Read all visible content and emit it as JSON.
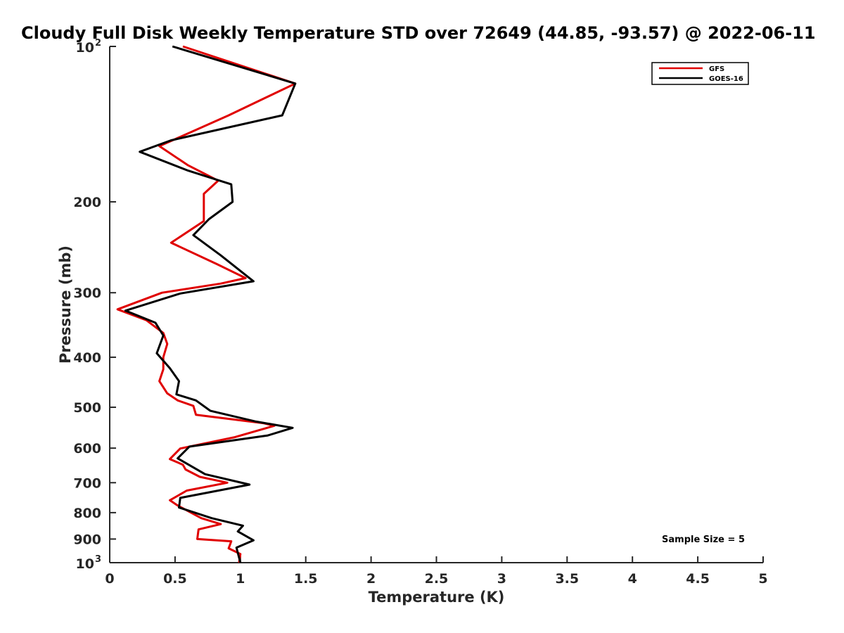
{
  "chart_data": {
    "type": "line",
    "title": "Cloudy Full Disk Weekly Temperature STD over 72649 (44.85, -93.57) @ 2022-06-11",
    "xlabel": "Temperature (K)",
    "ylabel": "Pressure (mb)",
    "xlim": [
      0,
      5
    ],
    "ylim": [
      100,
      1000
    ],
    "y_scale": "log",
    "y_reversed": true,
    "grid": false,
    "legend_position": "top-right",
    "x_ticks": [
      "0",
      "0.5",
      "1",
      "1.5",
      "2",
      "2.5",
      "3",
      "3.5",
      "4",
      "4.5",
      "5"
    ],
    "y_ticks": [
      {
        "value": 100,
        "base": "10",
        "exp": "2"
      },
      {
        "value": 200,
        "label": "200"
      },
      {
        "value": 300,
        "label": "300"
      },
      {
        "value": 400,
        "label": "400"
      },
      {
        "value": 500,
        "label": "500"
      },
      {
        "value": 600,
        "label": "600"
      },
      {
        "value": 700,
        "label": "700"
      },
      {
        "value": 800,
        "label": "800"
      },
      {
        "value": 900,
        "label": "900"
      },
      {
        "value": 1000,
        "base": "10",
        "exp": "3"
      }
    ],
    "annotation": "Sample Size = 5",
    "series": [
      {
        "name": "GFS",
        "color": "#e00000",
        "points": [
          [
            0.56,
            100
          ],
          [
            1.42,
            118
          ],
          [
            0.91,
            136
          ],
          [
            0.38,
            156
          ],
          [
            0.6,
            170
          ],
          [
            0.83,
            182
          ],
          [
            0.72,
            193
          ],
          [
            0.72,
            206
          ],
          [
            0.72,
            218
          ],
          [
            0.47,
            240
          ],
          [
            0.82,
            264
          ],
          [
            1.04,
            281
          ],
          [
            0.85,
            288
          ],
          [
            0.4,
            300
          ],
          [
            0.06,
            323
          ],
          [
            0.28,
            339
          ],
          [
            0.41,
            359
          ],
          [
            0.44,
            377
          ],
          [
            0.41,
            400
          ],
          [
            0.41,
            422
          ],
          [
            0.38,
            445
          ],
          [
            0.44,
            470
          ],
          [
            0.52,
            485
          ],
          [
            0.64,
            497
          ],
          [
            0.66,
            517
          ],
          [
            1.18,
            537
          ],
          [
            1.26,
            543
          ],
          [
            0.95,
            572
          ],
          [
            0.54,
            601
          ],
          [
            0.46,
            630
          ],
          [
            0.56,
            646
          ],
          [
            0.58,
            660
          ],
          [
            0.69,
            682
          ],
          [
            0.9,
            700
          ],
          [
            0.59,
            725
          ],
          [
            0.46,
            757
          ],
          [
            0.52,
            775
          ],
          [
            0.7,
            820
          ],
          [
            0.85,
            842
          ],
          [
            0.68,
            862
          ],
          [
            0.67,
            900
          ],
          [
            0.93,
            909
          ],
          [
            0.91,
            938
          ],
          [
            1.0,
            962
          ],
          [
            0.99,
            1000
          ]
        ]
      },
      {
        "name": "GOES-16",
        "color": "#000000",
        "points": [
          [
            0.48,
            100
          ],
          [
            1.42,
            118
          ],
          [
            1.32,
            136
          ],
          [
            0.47,
            152
          ],
          [
            0.23,
            160
          ],
          [
            0.6,
            174
          ],
          [
            0.93,
            185
          ],
          [
            0.94,
            200
          ],
          [
            0.76,
            216
          ],
          [
            0.64,
            232
          ],
          [
            0.85,
            254
          ],
          [
            1.1,
            285
          ],
          [
            0.54,
            301
          ],
          [
            0.12,
            325
          ],
          [
            0.35,
            343
          ],
          [
            0.41,
            363
          ],
          [
            0.36,
            393
          ],
          [
            0.46,
            420
          ],
          [
            0.53,
            445
          ],
          [
            0.51,
            472
          ],
          [
            0.66,
            485
          ],
          [
            0.77,
            508
          ],
          [
            1.12,
            533
          ],
          [
            1.4,
            548
          ],
          [
            1.21,
            567
          ],
          [
            0.61,
            596
          ],
          [
            0.52,
            628
          ],
          [
            0.64,
            654
          ],
          [
            0.73,
            674
          ],
          [
            1.07,
            706
          ],
          [
            0.54,
            749
          ],
          [
            0.53,
            782
          ],
          [
            0.78,
            820
          ],
          [
            1.02,
            848
          ],
          [
            0.98,
            870
          ],
          [
            1.1,
            905
          ],
          [
            0.97,
            935
          ],
          [
            1.0,
            1000
          ]
        ]
      }
    ]
  }
}
